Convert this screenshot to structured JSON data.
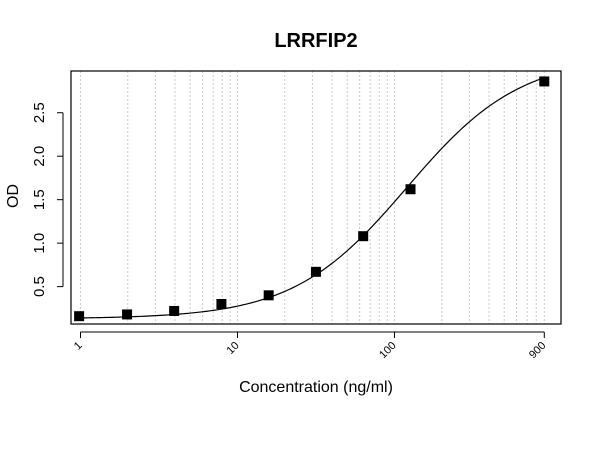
{
  "chart_data": {
    "type": "scatter",
    "title": "LRRFIP2",
    "xlabel": "Concentration (ng/ml)",
    "ylabel": "OD",
    "x_scale": "log",
    "xlim": [
      0.87,
      1150
    ],
    "ylim": [
      0.07,
      2.98
    ],
    "x_ticks": [
      1,
      10,
      100,
      900
    ],
    "x_tick_labels": [
      "1",
      "10",
      "100",
      "900"
    ],
    "y_ticks": [
      0.5,
      1.0,
      1.5,
      2.0,
      2.5
    ],
    "y_tick_labels": [
      "0.5",
      "1.0",
      "1.5",
      "2.0",
      "2.5"
    ],
    "grid": "vertical dotted at log minor ticks",
    "legend": "none",
    "fit_curve": "4-parameter logistic",
    "series": [
      {
        "points": [
          {
            "x": 0.98,
            "y": 0.16
          },
          {
            "x": 1.98,
            "y": 0.18
          },
          {
            "x": 3.95,
            "y": 0.22
          },
          {
            "x": 7.9,
            "y": 0.3
          },
          {
            "x": 15.8,
            "y": 0.4
          },
          {
            "x": 31.6,
            "y": 0.67
          },
          {
            "x": 63.2,
            "y": 1.08
          },
          {
            "x": 126.5,
            "y": 1.62
          },
          {
            "x": 900,
            "y": 2.86
          }
        ]
      }
    ],
    "colors": {
      "marker": "#000000",
      "curve": "#000000",
      "grid": "#c8c8c8",
      "axis": "#000000"
    }
  }
}
